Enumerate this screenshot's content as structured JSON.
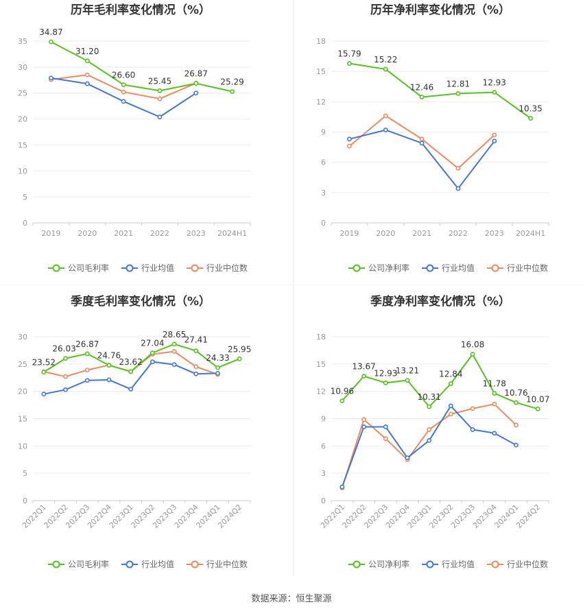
{
  "footer": "数据来源：恒生聚源",
  "colors": {
    "company": "#52c41a",
    "industry_avg": "#3e78d8",
    "industry_median": "#f08a5d"
  },
  "chart_data": [
    {
      "type": "line",
      "title": "历年毛利率变化情况（%）",
      "categories": [
        "2019",
        "2020",
        "2021",
        "2022",
        "2023",
        "2024H1"
      ],
      "ylim": [
        0,
        35
      ],
      "yticks": [
        0,
        5,
        10,
        15,
        20,
        25,
        30,
        35
      ],
      "grid": true,
      "legend_position": "bottom",
      "series": [
        {
          "name": "公司毛利率",
          "key": "company",
          "values": [
            34.87,
            31.2,
            26.6,
            25.45,
            26.87,
            25.29
          ],
          "labels": [
            "34.87",
            "31.20",
            "26.60",
            "25.45",
            "26.87",
            "25.29"
          ]
        },
        {
          "name": "行业均值",
          "key": "industry_avg",
          "values": [
            27.9,
            26.8,
            23.4,
            20.4,
            25.0,
            null
          ]
        },
        {
          "name": "行业中位数",
          "key": "industry_median",
          "values": [
            27.6,
            28.5,
            25.2,
            23.9,
            26.9,
            null
          ]
        }
      ]
    },
    {
      "type": "line",
      "title": "历年净利率变化情况（%）",
      "categories": [
        "2019",
        "2020",
        "2021",
        "2022",
        "2023",
        "2024H1"
      ],
      "ylim": [
        0,
        18
      ],
      "yticks": [
        0,
        3,
        6,
        9,
        12,
        15,
        18
      ],
      "grid": true,
      "legend_position": "bottom",
      "series": [
        {
          "name": "公司净利率",
          "key": "company",
          "values": [
            15.79,
            15.22,
            12.46,
            12.81,
            12.93,
            10.35
          ],
          "labels": [
            "15.79",
            "15.22",
            "12.46",
            "12.81",
            "12.93",
            "10.35"
          ]
        },
        {
          "name": "行业均值",
          "key": "industry_avg",
          "values": [
            8.3,
            9.2,
            7.9,
            3.4,
            8.1,
            null
          ]
        },
        {
          "name": "行业中位数",
          "key": "industry_median",
          "values": [
            7.6,
            10.6,
            8.3,
            5.4,
            8.7,
            null
          ]
        }
      ]
    },
    {
      "type": "line",
      "title": "季度毛利率变化情况（%）",
      "categories": [
        "2022Q1",
        "2022Q2",
        "2022Q3",
        "2022Q4",
        "2023Q1",
        "2023Q2",
        "2023Q3",
        "2023Q4",
        "2024Q1",
        "2024Q2"
      ],
      "ylim": [
        0,
        30
      ],
      "yticks": [
        0,
        5,
        10,
        15,
        20,
        25,
        30
      ],
      "grid": true,
      "rotated_xticks": true,
      "legend_position": "bottom",
      "series": [
        {
          "name": "公司毛利率",
          "key": "company",
          "values": [
            23.52,
            26.03,
            26.87,
            24.76,
            23.62,
            27.04,
            28.65,
            27.41,
            24.33,
            25.95
          ],
          "labels": [
            "23.52",
            "26.03",
            "26.87",
            "24.76",
            "23.62",
            "27.04",
            "28.65",
            "27.41",
            "24.33",
            "25.95"
          ]
        },
        {
          "name": "行业均值",
          "key": "industry_avg",
          "values": [
            19.5,
            20.3,
            22.0,
            22.1,
            20.4,
            25.4,
            24.9,
            23.2,
            23.3,
            null
          ]
        },
        {
          "name": "行业中位数",
          "key": "industry_median",
          "values": [
            23.6,
            22.7,
            23.9,
            24.8,
            23.6,
            26.8,
            27.3,
            24.5,
            23.1,
            null
          ]
        }
      ]
    },
    {
      "type": "line",
      "title": "季度净利率变化情况（%）",
      "categories": [
        "2022Q1",
        "2022Q2",
        "2022Q3",
        "2022Q4",
        "2023Q1",
        "2023Q2",
        "2023Q3",
        "2023Q4",
        "2024Q1",
        "2024Q2"
      ],
      "ylim": [
        0,
        18
      ],
      "yticks": [
        0,
        3,
        6,
        9,
        12,
        15,
        18
      ],
      "grid": true,
      "rotated_xticks": true,
      "legend_position": "bottom",
      "series": [
        {
          "name": "公司净利率",
          "key": "company",
          "values": [
            10.96,
            13.67,
            12.93,
            13.21,
            10.31,
            12.84,
            16.08,
            11.78,
            10.76,
            10.07
          ],
          "labels": [
            "10.96",
            "13.67",
            "12.93",
            "13.21",
            "10.31",
            "12.84",
            "16.08",
            "11.78",
            "10.76",
            "10.07"
          ]
        },
        {
          "name": "行业均值",
          "key": "industry_avg",
          "values": [
            1.5,
            8.1,
            8.1,
            4.7,
            6.6,
            10.4,
            7.8,
            7.4,
            6.1,
            null
          ]
        },
        {
          "name": "行业中位数",
          "key": "industry_median",
          "values": [
            1.4,
            8.9,
            6.8,
            4.5,
            7.8,
            9.5,
            10.1,
            10.6,
            8.3,
            null
          ]
        }
      ]
    }
  ]
}
